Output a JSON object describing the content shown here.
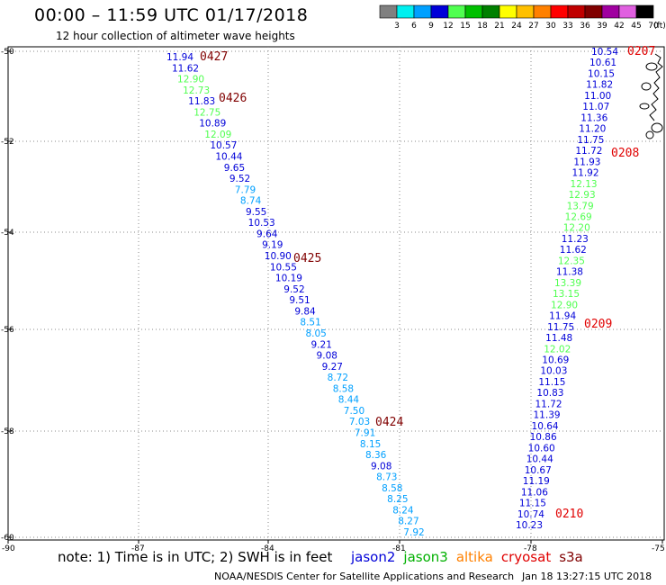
{
  "header": {
    "title": "00:00 – 11:59 UTC 01/17/2018",
    "subtitle": "12 hour collection of altimeter wave heights"
  },
  "color_scale": {
    "ticks": [
      "3",
      "6",
      "9",
      "12",
      "15",
      "18",
      "21",
      "24",
      "27",
      "30",
      "33",
      "36",
      "39",
      "42",
      "45",
      "70",
      "(ft)"
    ],
    "colors": [
      "#808080",
      "#00f0f0",
      "#00a0ff",
      "#0000d8",
      "#50ff50",
      "#00c000",
      "#008000",
      "#ffff00",
      "#ffc000",
      "#ff8000",
      "#ff0000",
      "#c00000",
      "#800000",
      "#a000a0",
      "#e060e0",
      "#000000"
    ]
  },
  "axes": {
    "lon_ticks": [
      "-90",
      "-87",
      "-84",
      "-81",
      "-78",
      "-75"
    ],
    "lat_ticks": [
      "-50",
      "-52",
      "-54",
      "-56",
      "-58",
      "-60"
    ]
  },
  "tracks": {
    "west": {
      "values": [
        "11.94",
        "11.62",
        "12.90",
        "12.73",
        "11.83",
        "12.75",
        "10.89",
        "12.09",
        "10.57",
        "10.44",
        "9.65",
        "9.52",
        "7.79",
        "8.74",
        "9.55",
        "10.53",
        "9.64",
        "9.19",
        "10.90",
        "10.55",
        "10.19",
        "9.52",
        "9.51",
        "9.84",
        "8.51",
        "8.05",
        "9.21",
        "9.08",
        "9.27",
        "8.72",
        "8.58",
        "8.44",
        "7.50",
        "7.03",
        "7.91",
        "8.15",
        "8.36",
        "9.08",
        "8.73",
        "8.58",
        "8.25",
        "8.24",
        "8.27",
        "7.92"
      ],
      "colors": [
        "#0000d8",
        "#0000d8",
        "#50ff50",
        "#50ff50",
        "#0000d8",
        "#50ff50",
        "#0000d8",
        "#50ff50",
        "#0000d8",
        "#0000d8",
        "#0000d8",
        "#0000d8",
        "#00a0ff",
        "#00a0ff",
        "#0000d8",
        "#0000d8",
        "#0000d8",
        "#0000d8",
        "#0000d8",
        "#0000d8",
        "#0000d8",
        "#0000d8",
        "#0000d8",
        "#0000d8",
        "#00a0ff",
        "#00a0ff",
        "#0000d8",
        "#0000d8",
        "#0000d8",
        "#00a0ff",
        "#00a0ff",
        "#00a0ff",
        "#00a0ff",
        "#00a0ff",
        "#00a0ff",
        "#00a0ff",
        "#00a0ff",
        "#0000d8",
        "#00a0ff",
        "#00a0ff",
        "#00a0ff",
        "#00a0ff",
        "#00a0ff",
        "#00a0ff"
      ],
      "time_labels": [
        "0427",
        "0426",
        "0425",
        "0424"
      ]
    },
    "east": {
      "values": [
        "10.54",
        "10.61",
        "10.15",
        "11.82",
        "11.00",
        "11.07",
        "11.36",
        "11.20",
        "11.75",
        "11.72",
        "11.93",
        "11.92",
        "12.13",
        "12.93",
        "13.79",
        "12.69",
        "12.20",
        "11.23",
        "11.62",
        "12.35",
        "11.38",
        "13.39",
        "13.15",
        "12.90",
        "11.94",
        "11.75",
        "11.48",
        "12.02",
        "10.69",
        "10.03",
        "11.15",
        "10.83",
        "11.72",
        "11.39",
        "10.64",
        "10.86",
        "10.60",
        "10.44",
        "10.67",
        "11.19",
        "11.06",
        "11.15",
        "10.74",
        "10.23"
      ],
      "colors": [
        "#0000d8",
        "#0000d8",
        "#0000d8",
        "#0000d8",
        "#0000d8",
        "#0000d8",
        "#0000d8",
        "#0000d8",
        "#0000d8",
        "#0000d8",
        "#0000d8",
        "#0000d8",
        "#50ff50",
        "#50ff50",
        "#50ff50",
        "#50ff50",
        "#50ff50",
        "#0000d8",
        "#0000d8",
        "#50ff50",
        "#0000d8",
        "#50ff50",
        "#50ff50",
        "#50ff50",
        "#0000d8",
        "#0000d8",
        "#0000d8",
        "#50ff50",
        "#0000d8",
        "#0000d8",
        "#0000d8",
        "#0000d8",
        "#0000d8",
        "#0000d8",
        "#0000d8",
        "#0000d8",
        "#0000d8",
        "#0000d8",
        "#0000d8",
        "#0000d8",
        "#0000d8",
        "#0000d8",
        "#0000d8",
        "#0000d8"
      ],
      "time_labels": [
        "0207",
        "0208",
        "0209",
        "0210"
      ]
    }
  },
  "label_colors": {
    "west_time": "#800000",
    "east_time": "#e00000"
  },
  "footer": {
    "note": "note: 1) Time is in UTC; 2) SWH is in feet",
    "sats": [
      {
        "name": "jason2",
        "color": "#0000d8"
      },
      {
        "name": "jason3",
        "color": "#00b000"
      },
      {
        "name": "altika",
        "color": "#ff8000"
      },
      {
        "name": "cryosat",
        "color": "#e00000"
      },
      {
        "name": "s3a",
        "color": "#800000"
      }
    ],
    "credit": "NOAA/NESDIS Center for Satellite Applications and Research",
    "timestamp": "Jan 18 13:27:15 UTC 2018"
  }
}
